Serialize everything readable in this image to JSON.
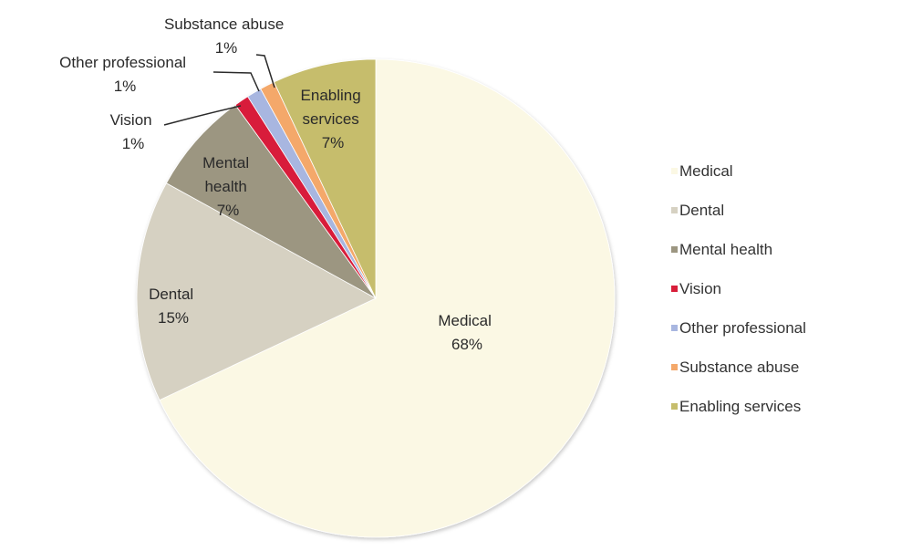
{
  "chart_data": {
    "type": "pie",
    "title": "",
    "slices": [
      {
        "name": "Medical",
        "value": 68,
        "label": "68%",
        "color": "#fbf8e4"
      },
      {
        "name": "Dental",
        "value": 15,
        "label": "15%",
        "color": "#d6d1c2"
      },
      {
        "name": "Mental health",
        "value": 7,
        "label": "7%",
        "color": "#9c9681"
      },
      {
        "name": "Vision",
        "value": 1,
        "label": "1%",
        "color": "#d81e3a"
      },
      {
        "name": "Other professional",
        "value": 1,
        "label": "1%",
        "color": "#a8b6e0"
      },
      {
        "name": "Substance abuse",
        "value": 1,
        "label": "1%",
        "color": "#f4a86a"
      },
      {
        "name": "Enabling services",
        "value": 7,
        "label": "7%",
        "color": "#c6bd6c"
      }
    ],
    "labels": {
      "medical": [
        "Medical",
        "68%"
      ],
      "dental": [
        "Dental",
        "15%"
      ],
      "mental_health": [
        "Mental",
        "health",
        "7%"
      ],
      "vision": [
        "Vision",
        "1%"
      ],
      "other_professional": [
        "Other professional",
        "1%"
      ],
      "substance_abuse": [
        "Substance abuse",
        "1%"
      ],
      "enabling_services": [
        "Enabling",
        "services",
        "7%"
      ]
    },
    "legend": {
      "placement": "right",
      "entries": [
        "Medical",
        "Dental",
        "Mental health",
        "Vision",
        "Other professional",
        "Substance abuse",
        "Enabling services"
      ]
    }
  }
}
